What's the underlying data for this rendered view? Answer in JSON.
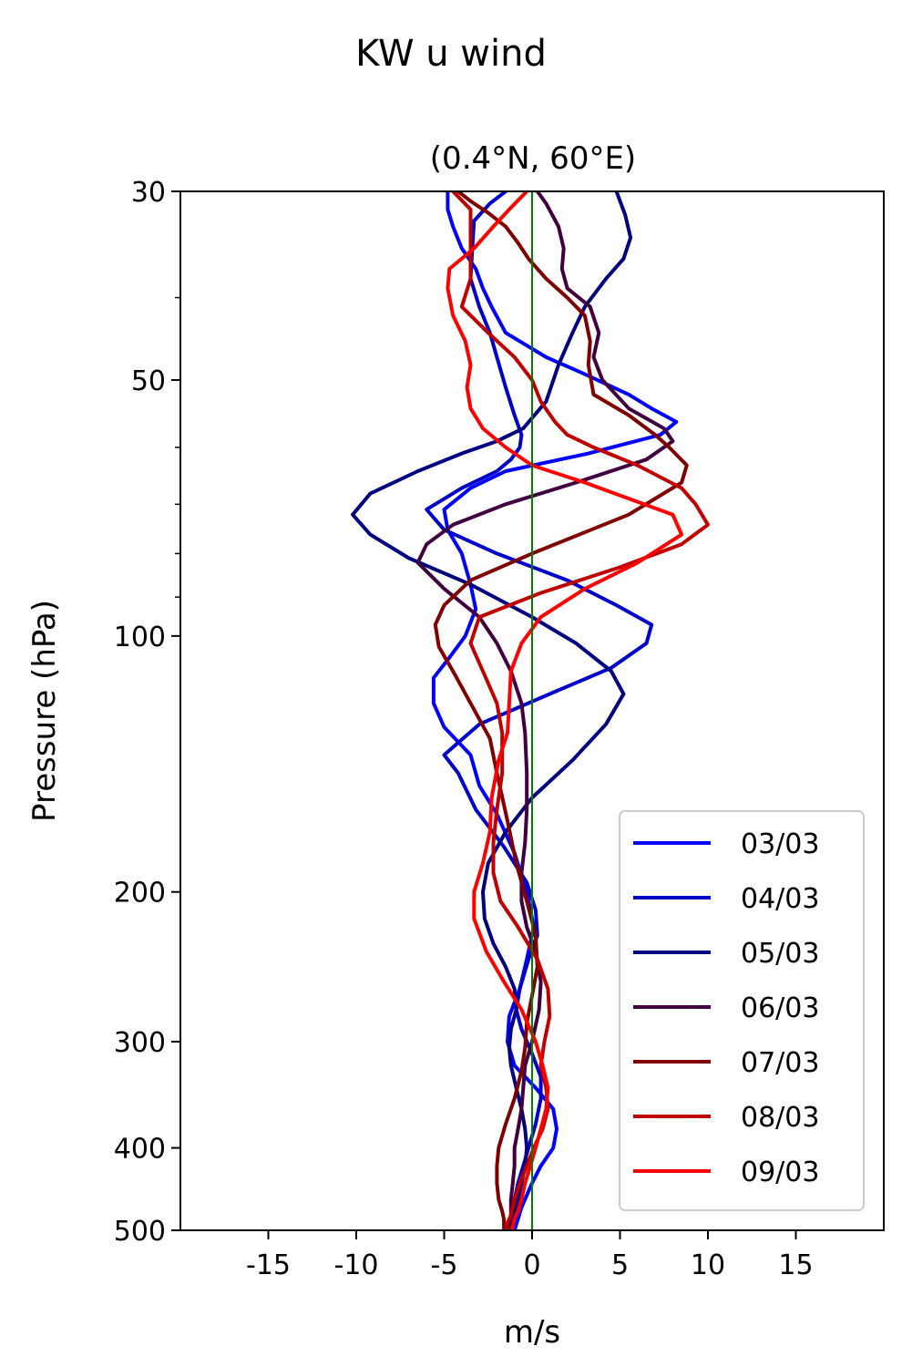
{
  "chart_data": {
    "type": "line",
    "title": "KW u wind",
    "subtitle": "(0.4°N, 60°E)",
    "xlabel": "m/s",
    "ylabel": "Pressure (hPa)",
    "xlim": [
      -20,
      20
    ],
    "ylim": [
      500,
      30
    ],
    "yscale": "log",
    "xticks": [
      -15,
      -10,
      -5,
      0,
      5,
      10,
      15
    ],
    "xtick_labels": [
      "-15",
      "-10",
      "-5",
      "0",
      "5",
      "10",
      "15"
    ],
    "yticks": [
      30,
      50,
      100,
      200,
      300,
      400,
      500
    ],
    "ytick_labels": [
      "30",
      "50",
      "100",
      "200",
      "300",
      "400",
      "500"
    ],
    "yminor_ticks": [
      40,
      60,
      70,
      80,
      90
    ],
    "zero_line_color": "#008000",
    "grid": false,
    "legend_position": "lower right",
    "series": [
      {
        "name": "03/03",
        "color": "#0000ff",
        "x": [
          -4.8,
          -4.8,
          -4.5,
          -4.0,
          -3.2,
          -2.8,
          -2.3,
          -1.5,
          0.8,
          2.8,
          5.5,
          6.8,
          8.2,
          7.3,
          3.2,
          -1.5,
          -3.5,
          -5.0,
          -4.8,
          -4.0,
          -3.5,
          -3.2,
          -3.8,
          -4.7,
          -5.6,
          -5.6,
          -5.0,
          -3.5,
          -3.0,
          -2.0,
          -1.0,
          -0.3,
          0.1,
          -0.3,
          -0.7,
          -1.3,
          -1.4,
          -1.0,
          0.2,
          1.2,
          1.4,
          1.2,
          0.5,
          0.0,
          -0.6,
          -1.0
        ],
        "y": [
          30,
          31.5,
          33,
          35,
          37,
          39,
          41,
          44,
          47,
          49,
          52,
          54,
          56,
          58,
          61,
          64,
          67,
          71,
          75,
          80,
          87,
          93,
          100,
          106,
          112,
          120,
          128,
          138,
          150,
          162,
          180,
          200,
          220,
          240,
          260,
          280,
          300,
          320,
          340,
          360,
          380,
          400,
          420,
          440,
          470,
          500
        ]
      },
      {
        "name": "04/03",
        "color": "#0000c8",
        "x": [
          -1.5,
          -2.4,
          -3.3,
          -3.4,
          -3.5,
          -3.0,
          -2.4,
          -2.0,
          -1.5,
          -1.0,
          -0.6,
          -0.7,
          -1.2,
          -2.0,
          -4.0,
          -6.0,
          -5.0,
          -2.0,
          2.0,
          4.8,
          6.8,
          6.5,
          4.5,
          1.0,
          -3.0,
          -5.0,
          -4.2,
          -3.2,
          -1.6,
          -0.3,
          0.2,
          0.3,
          -0.2,
          -0.7,
          -0.9,
          -0.6,
          0.0,
          0.5,
          0.5,
          0.2,
          -0.2,
          -0.5,
          -0.8,
          -1.0,
          -1.2,
          -1.2
        ],
        "y": [
          30,
          31,
          32.5,
          35,
          38,
          41,
          44,
          47,
          51,
          55,
          58,
          60,
          62,
          64,
          67,
          71,
          75,
          80,
          86,
          92,
          97,
          102,
          109,
          117,
          127,
          138,
          145,
          160,
          177,
          195,
          210,
          225,
          240,
          260,
          275,
          290,
          310,
          330,
          350,
          375,
          400,
          420,
          440,
          460,
          480,
          500
        ]
      },
      {
        "name": "05/03",
        "color": "#000080",
        "x": [
          4.8,
          5.3,
          5.6,
          5.2,
          4.2,
          3.0,
          2.3,
          1.5,
          0.8,
          -0.5,
          -2.0,
          -4.0,
          -6.5,
          -9.2,
          -10.2,
          -9.2,
          -7.0,
          -3.5,
          0.0,
          2.5,
          4.5,
          5.2,
          4.2,
          2.3,
          0.0,
          -1.5,
          -2.5,
          -2.8,
          -2.7,
          -2.2,
          -1.5,
          -1.0,
          -0.9,
          -1.2,
          -1.3,
          -1.2,
          -0.9,
          -0.6,
          -0.4,
          -0.3,
          -0.4,
          -0.6,
          -0.8,
          -1.0,
          -1.1,
          -1.2
        ],
        "y": [
          30,
          32,
          34,
          36,
          38,
          41,
          44,
          48,
          53,
          57,
          59,
          61,
          64,
          68,
          72,
          76,
          81,
          87,
          95,
          102,
          110,
          117,
          127,
          140,
          155,
          170,
          185,
          200,
          215,
          230,
          245,
          260,
          275,
          290,
          305,
          320,
          340,
          360,
          380,
          400,
          420,
          440,
          460,
          480,
          490,
          500
        ]
      },
      {
        "name": "06/03",
        "color": "#400040",
        "x": [
          0.3,
          0.8,
          1.5,
          1.8,
          1.7,
          2.0,
          3.3,
          3.8,
          3.5,
          4.0,
          5.5,
          7.5,
          8.0,
          6.5,
          2.5,
          -1.5,
          -4.5,
          -6.0,
          -6.5,
          -5.0,
          -3.0,
          -2.0,
          -1.2,
          -0.6,
          -0.4,
          -0.3,
          -0.3,
          -0.4,
          -0.6,
          -0.6,
          -0.3,
          0.2,
          0.5,
          0.4,
          0.0,
          -0.4,
          -0.5,
          -0.6,
          -0.8,
          -1.0,
          -1.0,
          -1.1,
          -1.2,
          -1.2,
          -1.3,
          -1.3
        ],
        "y": [
          30,
          31,
          33,
          35,
          37,
          39,
          41,
          44,
          47,
          50,
          54,
          57,
          59,
          62,
          66,
          70,
          74,
          78,
          82,
          88,
          95,
          102,
          110,
          120,
          130,
          145,
          160,
          175,
          190,
          205,
          220,
          235,
          255,
          275,
          300,
          320,
          340,
          360,
          380,
          400,
          420,
          440,
          460,
          480,
          490,
          500
        ]
      },
      {
        "name": "07/03",
        "color": "#800000",
        "x": [
          -4.2,
          -3.5,
          -2.5,
          -1.5,
          -0.8,
          -0.2,
          0.8,
          2.0,
          3.0,
          3.3,
          3.2,
          3.5,
          5.5,
          7.0,
          7.8,
          8.8,
          8.5,
          5.5,
          0.0,
          -3.5,
          -5.0,
          -5.5,
          -5.3,
          -4.5,
          -3.5,
          -2.4,
          -2.0,
          -1.4,
          -0.9,
          -0.3,
          0.2,
          0.3,
          0.0,
          -0.3,
          -0.4,
          -0.6,
          -1.0,
          -1.5,
          -1.9,
          -2.0,
          -2.0,
          -1.9,
          -1.7,
          -1.6,
          -1.6,
          -1.6
        ],
        "y": [
          30,
          30.8,
          31.8,
          33,
          34.5,
          36,
          38,
          40,
          42,
          45,
          48,
          52,
          55,
          58,
          60,
          63,
          66,
          72,
          80,
          86,
          92,
          97,
          103,
          110,
          120,
          132,
          145,
          165,
          185,
          205,
          225,
          245,
          265,
          285,
          305,
          325,
          350,
          375,
          400,
          420,
          440,
          460,
          475,
          485,
          495,
          500
        ]
      },
      {
        "name": "08/03",
        "color": "#c00000",
        "x": [
          -4.5,
          -3.5,
          -3.5,
          -3.5,
          -3.5,
          -4.0,
          -2.5,
          -1.0,
          0.0,
          0.5,
          1.3,
          2.0,
          3.5,
          6.0,
          8.5,
          9.3,
          10.0,
          8.5,
          5.0,
          0.5,
          -3.0,
          -3.5,
          -2.8,
          -2.0,
          -1.7,
          -1.7,
          -2.0,
          -2.2,
          -2.2,
          -1.8,
          -0.8,
          0.3,
          0.9,
          1.0,
          0.7,
          0.5,
          0.8,
          0.9,
          0.6,
          0.1,
          -0.3,
          -0.7,
          -1.0,
          -1.2,
          -1.4,
          -1.5
        ],
        "y": [
          30,
          31.5,
          33,
          36,
          38,
          41,
          44,
          47,
          50,
          53,
          56,
          58,
          60,
          63,
          67,
          70,
          74,
          78,
          83,
          89,
          95,
          102,
          110,
          120,
          130,
          145,
          160,
          175,
          190,
          205,
          220,
          240,
          260,
          280,
          300,
          320,
          340,
          360,
          380,
          400,
          420,
          440,
          460,
          480,
          490,
          500
        ]
      },
      {
        "name": "09/03",
        "color": "#ff0000",
        "x": [
          -0.3,
          -1.3,
          -2.2,
          -3.3,
          -4.7,
          -4.8,
          -4.5,
          -3.8,
          -3.5,
          -3.7,
          -3.5,
          -2.8,
          -1.5,
          0.0,
          3.0,
          8.0,
          8.5,
          6.0,
          3.0,
          0.5,
          -0.6,
          -1.2,
          -1.3,
          -1.4,
          -1.9,
          -2.3,
          -2.4,
          -2.8,
          -3.3,
          -3.3,
          -2.6,
          -1.6,
          -0.6,
          0.2,
          0.6,
          0.9,
          0.8,
          0.5,
          0.2,
          -0.1,
          -0.4,
          -0.6,
          -0.8,
          -1.0,
          -1.1,
          -1.2
        ],
        "y": [
          30,
          31.5,
          33,
          35,
          37,
          39,
          42,
          45,
          48,
          51,
          54,
          57,
          60,
          63,
          66,
          72,
          76,
          82,
          88,
          95,
          102,
          110,
          120,
          130,
          140,
          155,
          170,
          185,
          200,
          215,
          235,
          255,
          275,
          300,
          320,
          340,
          360,
          380,
          400,
          420,
          440,
          460,
          475,
          485,
          495,
          500
        ]
      }
    ]
  }
}
